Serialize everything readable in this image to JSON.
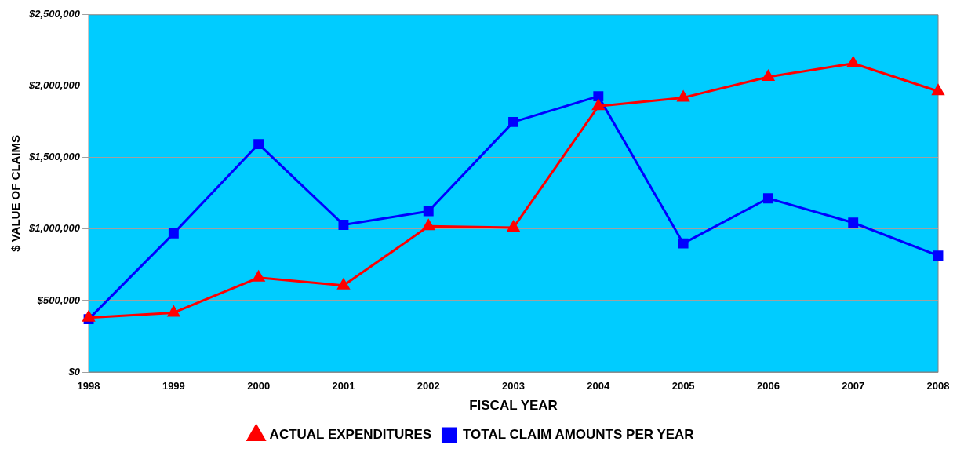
{
  "chart_data": {
    "type": "line",
    "xlabel": "FISCAL YEAR",
    "ylabel": "$ VALUE OF CLAIMS",
    "categories": [
      "1998",
      "1999",
      "2000",
      "2001",
      "2002",
      "2003",
      "2004",
      "2005",
      "2006",
      "2007",
      "2008"
    ],
    "ylim": [
      0,
      2500000
    ],
    "yticks": [
      {
        "value": 0,
        "label": "$0"
      },
      {
        "value": 500000,
        "label": "$500,000"
      },
      {
        "value": 1000000,
        "label": "$1,000,000"
      },
      {
        "value": 1500000,
        "label": "$1,500,000"
      },
      {
        "value": 2000000,
        "label": "$2,000,000"
      },
      {
        "value": 2500000,
        "label": "$2,500,000"
      }
    ],
    "series": [
      {
        "name": "TOTAL CLAIM AMOUNTS PER YEAR",
        "color": "#0000ff",
        "marker": "square",
        "values": [
          370000,
          970000,
          1595000,
          1030000,
          1125000,
          1750000,
          1930000,
          900000,
          1215000,
          1045000,
          815000
        ]
      },
      {
        "name": "ACTUAL EXPENDITURES",
        "color": "#ff0000",
        "marker": "triangle",
        "values": [
          380000,
          415000,
          660000,
          605000,
          1020000,
          1010000,
          1860000,
          1920000,
          2065000,
          2160000,
          1965000
        ]
      }
    ],
    "grid": "y",
    "legend": "bottom",
    "line_style": "solid"
  }
}
